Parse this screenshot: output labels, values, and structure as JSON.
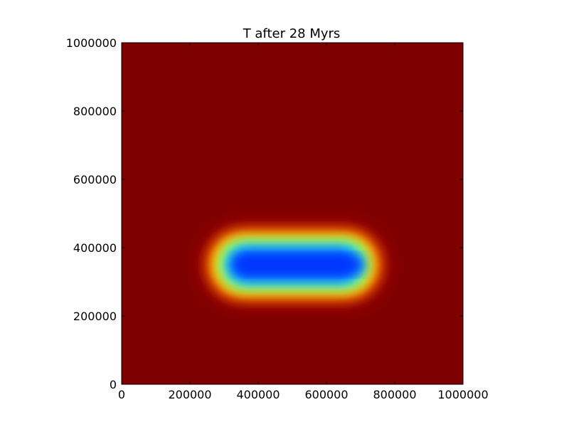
{
  "chart_data": {
    "type": "heatmap",
    "title": "T after 28 Myrs",
    "xlabel": "",
    "ylabel": "",
    "xlim": [
      0,
      1000000
    ],
    "ylim": [
      0,
      1000000
    ],
    "x_ticks": [
      0,
      200000,
      400000,
      600000,
      800000,
      1000000
    ],
    "y_ticks": [
      0,
      200000,
      400000,
      600000,
      800000,
      1000000
    ],
    "x_tick_labels": [
      "0",
      "200000",
      "400000",
      "600000",
      "800000",
      "1000000"
    ],
    "y_tick_labels": [
      "0",
      "200000",
      "400000",
      "600000",
      "800000",
      "1000000"
    ],
    "grid": false,
    "colormap": "jet",
    "background_value": 1.0,
    "anomaly": {
      "shape": "rounded-rectangle",
      "x_range": [
        250000,
        760000
      ],
      "y_range": [
        250000,
        450000
      ],
      "core_x_range": [
        330000,
        710000
      ],
      "core_center_y": 350000,
      "min_value": 0.1
    }
  }
}
